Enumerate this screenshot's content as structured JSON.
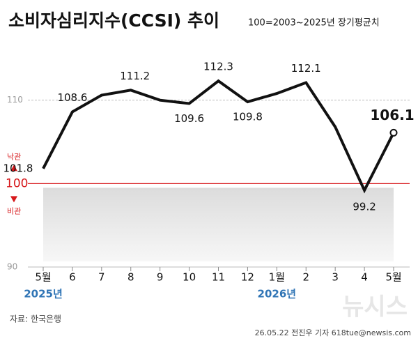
{
  "chart_data": {
    "type": "line",
    "title": "소비자심리지수(CCSI) 추이",
    "subtitle": "100=2003~2025년 장기평균치",
    "categories": [
      "5월",
      "6",
      "7",
      "8",
      "9",
      "10",
      "11",
      "12",
      "1월",
      "2",
      "3",
      "4",
      "5월"
    ],
    "year_labels": [
      "2025년",
      null,
      null,
      null,
      null,
      null,
      null,
      null,
      "2026년",
      null,
      null,
      null,
      null
    ],
    "series": [
      {
        "color": "#111111",
        "values": [
          101.8,
          108.6,
          110.6,
          111.2,
          110.0,
          109.6,
          112.3,
          109.8,
          110.8,
          112.1,
          106.8,
          99.2,
          106.1
        ],
        "value_labels": [
          "101.8",
          "108.6",
          null,
          "111.2",
          null,
          "109.6",
          "112.3",
          "109.8",
          null,
          "112.1",
          null,
          "99.2",
          "106.1"
        ]
      }
    ],
    "ylim": [
      90,
      119.5
    ],
    "yticks": [
      90,
      100,
      110
    ],
    "reference_line": {
      "value": 100,
      "color": "#d7191c",
      "upper_label": "낙관",
      "lower_label": "비관"
    },
    "source": "자료: 한국은행",
    "credit": "26.05.22 전진우 기자 618tue@newsis.com",
    "watermark": "뉴시스"
  }
}
